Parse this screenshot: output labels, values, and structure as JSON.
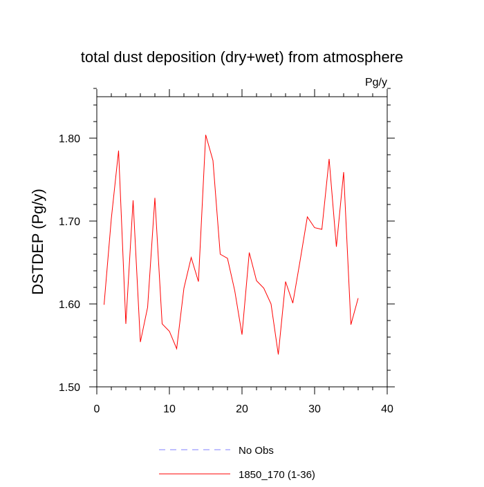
{
  "chart_data": {
    "type": "line",
    "title": "total dust deposition (dry+wet) from atmosphere",
    "units_label": "Pg/y",
    "ylabel": "DSTDEP  (Pg/y)",
    "xlabel": "",
    "xlim": [
      0,
      40
    ],
    "ylim": [
      1.5,
      1.85
    ],
    "x_ticks": [
      0,
      10,
      20,
      30,
      40
    ],
    "x_tick_labels": [
      "0",
      "10",
      "20",
      "30",
      "40"
    ],
    "y_ticks": [
      1.5,
      1.6,
      1.7,
      1.8
    ],
    "y_tick_labels": [
      "1.50",
      "1.60",
      "1.70",
      "1.80"
    ],
    "grid": false,
    "legend_position": "bottom-center",
    "series": [
      {
        "name": "1850_170 (1-36)",
        "color": "#ff0000",
        "dash": "solid",
        "x": [
          1,
          2,
          3,
          4,
          5,
          6,
          7,
          8,
          9,
          10,
          11,
          12,
          13,
          14,
          15,
          16,
          17,
          18,
          19,
          20,
          21,
          22,
          23,
          24,
          25,
          26,
          27,
          28,
          29,
          30,
          31,
          32,
          33,
          34,
          35,
          36
        ],
        "y": [
          1.599,
          1.703,
          1.785,
          1.576,
          1.725,
          1.554,
          1.596,
          1.728,
          1.576,
          1.567,
          1.546,
          1.619,
          1.656,
          1.627,
          1.804,
          1.773,
          1.66,
          1.655,
          1.616,
          1.563,
          1.662,
          1.628,
          1.619,
          1.6,
          1.539,
          1.627,
          1.601,
          1.652,
          1.705,
          1.692,
          1.69,
          1.775,
          1.669,
          1.759,
          1.575,
          1.607
        ]
      }
    ],
    "legend": [
      {
        "label": "No Obs",
        "color": "#7f7fff",
        "dash": "dashed"
      },
      {
        "label": "1850_170 (1-36)",
        "color": "#ff0000",
        "dash": "solid"
      }
    ]
  }
}
